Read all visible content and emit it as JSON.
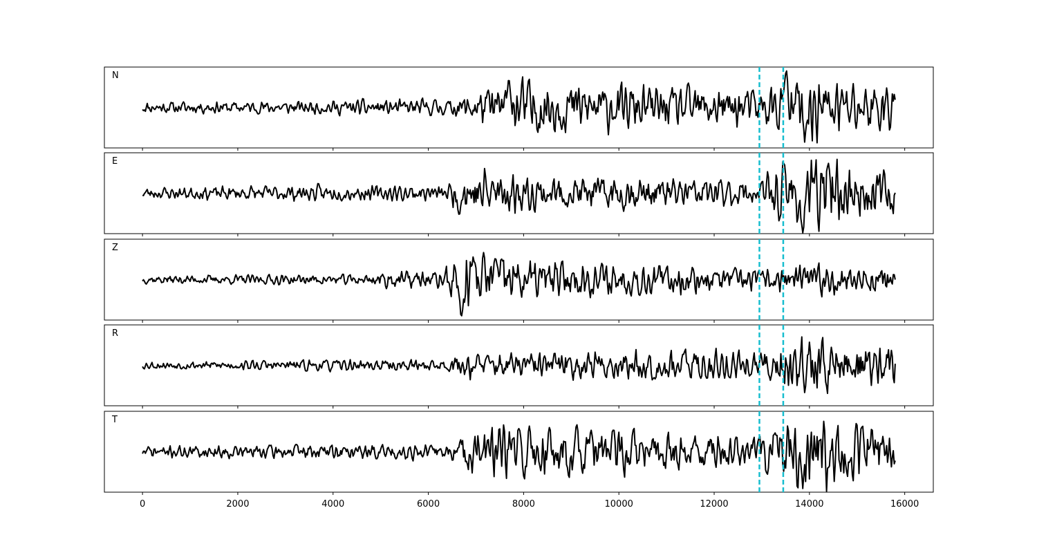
{
  "chart_data": {
    "type": "line",
    "title": "",
    "xlabel": "",
    "ylabel": "",
    "xlim": [
      -800,
      16600
    ],
    "xticks": [
      0,
      2000,
      4000,
      6000,
      8000,
      10000,
      12000,
      14000,
      16000
    ],
    "xtick_labels": [
      "0",
      "2000",
      "4000",
      "6000",
      "8000",
      "10000",
      "12000",
      "14000",
      "16000"
    ],
    "grid": false,
    "legend": "none",
    "shared_x": true,
    "y_ticks_visible": false,
    "trace_color": "#000000",
    "marker_color": "#17becf",
    "vertical_markers": [
      12950,
      13450
    ],
    "n_samples": 15800,
    "series": [
      {
        "name": "N",
        "ylim": [
          -1.3,
          1.3
        ],
        "envelope": [
          [
            0,
            0.15
          ],
          [
            3000,
            0.17
          ],
          [
            6500,
            0.22
          ],
          [
            7000,
            0.45
          ],
          [
            8000,
            0.8
          ],
          [
            9000,
            0.7
          ],
          [
            10000,
            0.6
          ],
          [
            11000,
            0.55
          ],
          [
            12000,
            0.6
          ],
          [
            12900,
            0.5
          ],
          [
            13300,
            0.6
          ],
          [
            13900,
            1.0
          ],
          [
            14300,
            0.8
          ],
          [
            15000,
            0.7
          ],
          [
            15800,
            0.7
          ]
        ],
        "peak_events": [
          [
            7700,
            0.85
          ],
          [
            13500,
            1.1
          ],
          [
            13900,
            -1.05
          ]
        ],
        "seed": 11
      },
      {
        "name": "E",
        "ylim": [
          -1.3,
          1.3
        ],
        "envelope": [
          [
            0,
            0.15
          ],
          [
            3000,
            0.2
          ],
          [
            6400,
            0.2
          ],
          [
            6600,
            0.5
          ],
          [
            7200,
            0.75
          ],
          [
            8000,
            0.45
          ],
          [
            10000,
            0.45
          ],
          [
            12000,
            0.4
          ],
          [
            12900,
            0.3
          ],
          [
            13300,
            0.7
          ],
          [
            13900,
            1.0
          ],
          [
            14400,
            0.85
          ],
          [
            15000,
            0.7
          ],
          [
            15800,
            0.6
          ]
        ],
        "peak_events": [
          [
            6650,
            -0.55
          ],
          [
            13850,
            -1.2
          ],
          [
            14400,
            1.05
          ]
        ],
        "seed": 23
      },
      {
        "name": "Z",
        "ylim": [
          -1.4,
          1.4
        ],
        "envelope": [
          [
            0,
            0.12
          ],
          [
            4800,
            0.15
          ],
          [
            5000,
            0.25
          ],
          [
            6300,
            0.25
          ],
          [
            6500,
            0.6
          ],
          [
            6800,
            0.9
          ],
          [
            7500,
            0.75
          ],
          [
            9000,
            0.5
          ],
          [
            11000,
            0.45
          ],
          [
            12900,
            0.3
          ],
          [
            13500,
            0.4
          ],
          [
            14500,
            0.45
          ],
          [
            15800,
            0.35
          ]
        ],
        "peak_events": [
          [
            6700,
            -1.4
          ],
          [
            6950,
            0.75
          ],
          [
            7400,
            0.7
          ]
        ],
        "seed": 37
      },
      {
        "name": "R",
        "ylim": [
          -1.3,
          1.3
        ],
        "envelope": [
          [
            0,
            0.1
          ],
          [
            4000,
            0.15
          ],
          [
            6400,
            0.15
          ],
          [
            6700,
            0.35
          ],
          [
            8000,
            0.35
          ],
          [
            10000,
            0.4
          ],
          [
            12000,
            0.45
          ],
          [
            12900,
            0.35
          ],
          [
            13400,
            0.6
          ],
          [
            13800,
            1.0
          ],
          [
            14500,
            0.75
          ],
          [
            15800,
            0.55
          ]
        ],
        "peak_events": [
          [
            13850,
            1.15
          ],
          [
            13900,
            -0.95
          ]
        ],
        "seed": 53
      },
      {
        "name": "T",
        "ylim": [
          -1.3,
          1.3
        ],
        "envelope": [
          [
            0,
            0.15
          ],
          [
            3500,
            0.2
          ],
          [
            6400,
            0.2
          ],
          [
            6700,
            0.4
          ],
          [
            7000,
            0.75
          ],
          [
            8500,
            0.75
          ],
          [
            10000,
            0.6
          ],
          [
            12000,
            0.5
          ],
          [
            12900,
            0.45
          ],
          [
            13400,
            0.8
          ],
          [
            14000,
            1.0
          ],
          [
            15000,
            0.85
          ],
          [
            15800,
            0.6
          ]
        ],
        "peak_events": [
          [
            13850,
            -1.2
          ],
          [
            15100,
            0.95
          ]
        ],
        "seed": 71
      }
    ]
  }
}
